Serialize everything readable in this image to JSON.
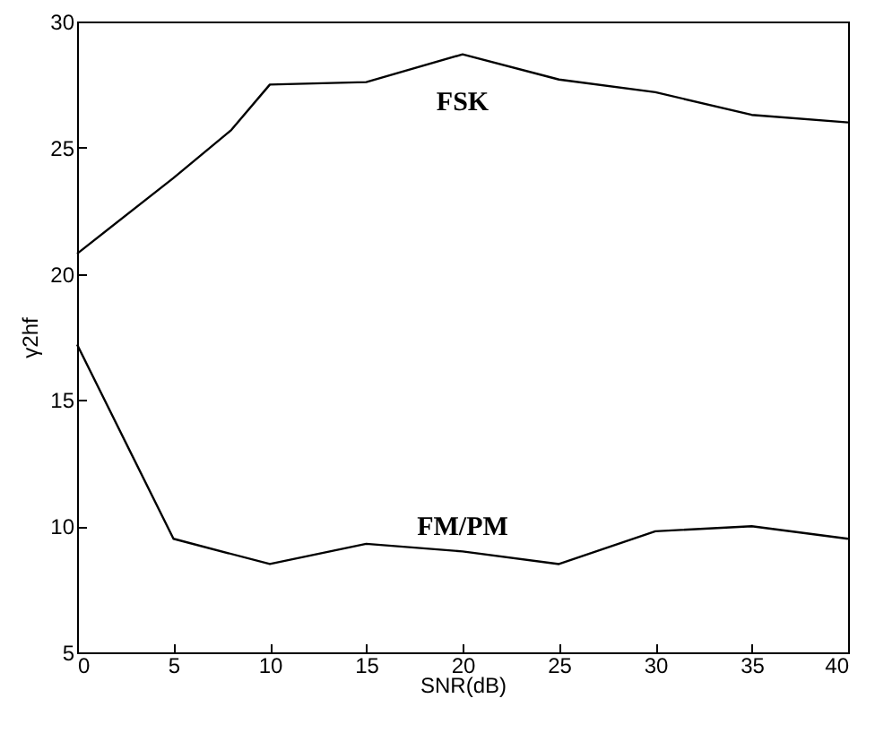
{
  "chart_data": {
    "type": "line",
    "xlabel": "SNR(dB)",
    "ylabel": "γ2hf",
    "xlim": [
      0,
      40
    ],
    "xticks": [
      0,
      5,
      10,
      15,
      20,
      25,
      30,
      35,
      40
    ],
    "ylim": [
      5,
      30
    ],
    "yticks": [
      5,
      10,
      15,
      20,
      25,
      30
    ],
    "grid": false,
    "legend": false,
    "series": [
      {
        "name": "FSK",
        "color": "#000000",
        "x": [
          0,
          5,
          8,
          10,
          15,
          20,
          25,
          30,
          35,
          40
        ],
        "values": [
          20.8,
          23.8,
          25.7,
          27.5,
          27.6,
          28.7,
          27.7,
          27.2,
          26.3,
          26.0
        ]
      },
      {
        "name": "FM/PM",
        "color": "#000000",
        "x": [
          0,
          5,
          10,
          15,
          20,
          25,
          30,
          35,
          40
        ],
        "values": [
          17.2,
          9.5,
          8.5,
          9.3,
          9.0,
          8.5,
          9.8,
          10.0,
          9.5
        ]
      }
    ]
  }
}
